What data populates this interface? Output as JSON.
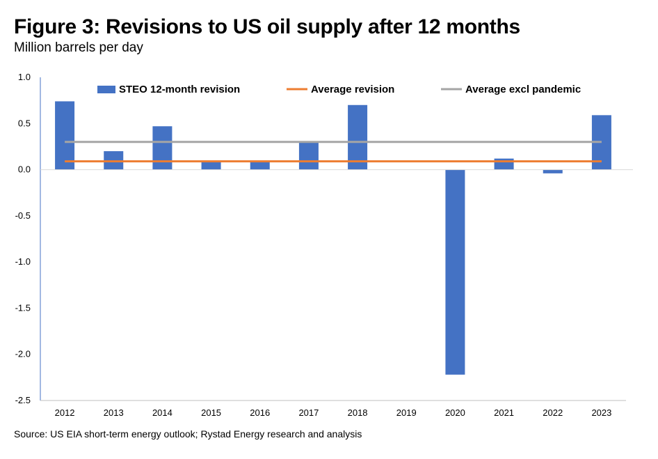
{
  "title": "Figure 3: Revisions to US oil supply after 12 months",
  "subtitle": "Million barrels per day",
  "source": "Source: US EIA short-term energy outlook; Rystad Energy research and analysis",
  "colors": {
    "bar": "#4472C4",
    "average": "#ED7D31",
    "average_excl": "#A5A5A5",
    "axis": "#4472C4"
  },
  "chart_data": {
    "type": "bar",
    "title": "Figure 3: Revisions to US oil supply after 12 months",
    "ylabel": "Million barrels per day",
    "xlabel": "",
    "ylim": [
      -2.5,
      1.0
    ],
    "yticks": [
      "1.0",
      "0.5",
      "0.0",
      "-0.5",
      "-1.0",
      "-1.5",
      "-2.0",
      "-2.5"
    ],
    "ytick_values": [
      1.0,
      0.5,
      0.0,
      -0.5,
      -1.0,
      -1.5,
      -2.0,
      -2.5
    ],
    "categories": [
      "2012",
      "2013",
      "2014",
      "2015",
      "2016",
      "2017",
      "2018",
      "2019",
      "2020",
      "2021",
      "2022",
      "2023"
    ],
    "legend_position": "top",
    "grid": false,
    "series": [
      {
        "name": "STEO 12-month revision",
        "type": "bar",
        "values": [
          0.74,
          0.2,
          0.47,
          0.09,
          0.09,
          0.3,
          0.7,
          0.0,
          -2.22,
          0.12,
          -0.04,
          0.59
        ]
      },
      {
        "name": "Average revision",
        "type": "line",
        "values": [
          0.09,
          0.09,
          0.09,
          0.09,
          0.09,
          0.09,
          0.09,
          0.09,
          0.09,
          0.09,
          0.09,
          0.09
        ]
      },
      {
        "name": "Average excl pandemic",
        "type": "line",
        "values": [
          0.3,
          0.3,
          0.3,
          0.3,
          0.3,
          0.3,
          0.3,
          0.3,
          0.3,
          0.3,
          0.3,
          0.3
        ]
      }
    ]
  }
}
